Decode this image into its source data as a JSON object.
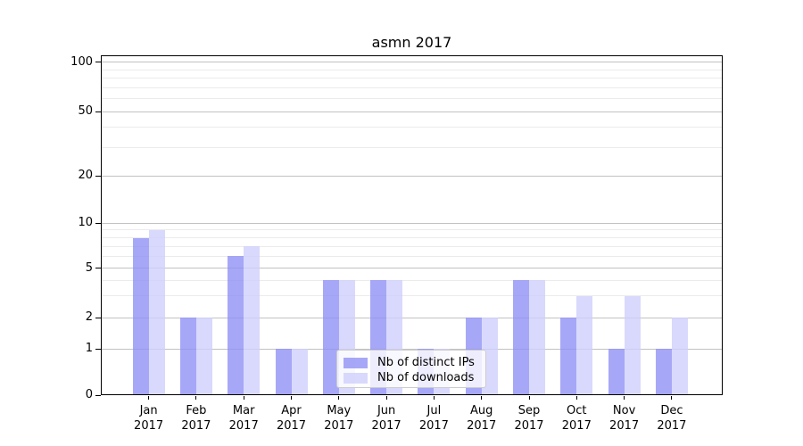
{
  "title": "asmn 2017",
  "chart_data": {
    "type": "bar",
    "title": "asmn 2017",
    "categories": [
      "Jan",
      "Feb",
      "Mar",
      "Apr",
      "May",
      "Jun",
      "Jul",
      "Aug",
      "Sep",
      "Oct",
      "Nov",
      "Dec"
    ],
    "category_year": "2017",
    "series": [
      {
        "name": "Nb of distinct IPs",
        "color": "rgba(145,145,245,0.8)",
        "values": [
          8,
          2,
          6,
          1,
          4,
          4,
          1,
          2,
          4,
          2,
          1,
          1
        ]
      },
      {
        "name": "Nb of downloads",
        "color": "rgba(208,208,252,0.8)",
        "values": [
          9,
          2,
          7,
          1,
          4,
          4,
          1,
          2,
          4,
          3,
          3,
          2
        ]
      }
    ],
    "y_axis": {
      "scale": "symlog",
      "range": [
        0,
        100
      ],
      "major_ticks": [
        0,
        1,
        2,
        5,
        10,
        20,
        50,
        100
      ],
      "minor_gridlines": [
        3,
        4,
        6,
        7,
        8,
        9,
        30,
        40,
        60,
        70,
        80,
        90
      ]
    },
    "x_axis": {
      "label_lines": 2
    },
    "legend": {
      "position": "lower center"
    },
    "grid": true,
    "colors": {
      "grid_major": "#c2c2c2",
      "grid_minor": "#ebebeb",
      "axis": "#000000",
      "background": "#ffffff"
    }
  }
}
